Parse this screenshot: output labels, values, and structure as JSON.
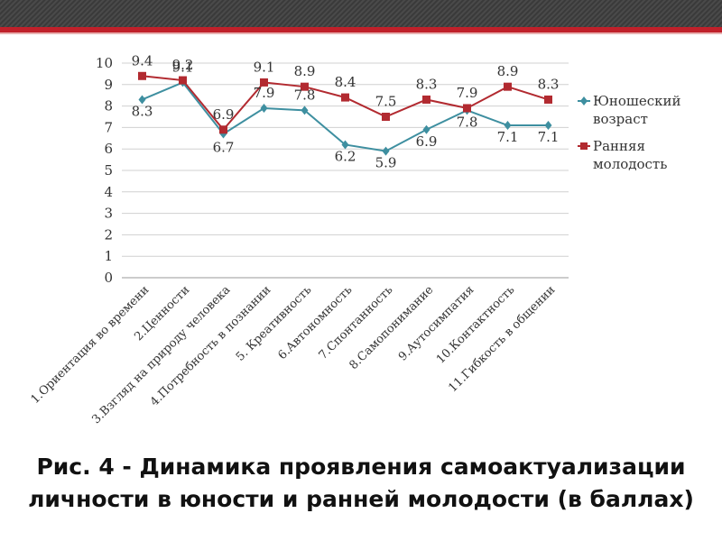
{
  "colors": {
    "top_bar": "#3a3a3a",
    "accent_red": "#c0202a",
    "series1": "#3e8fa0",
    "series2": "#b22a30",
    "grid": "#d0d0d0"
  },
  "chart_data": {
    "type": "line",
    "categories": [
      "1.Ориентация во времени",
      "2.Ценности",
      "3.Взгляд на природу человека",
      "4.Потребность в познании",
      "5. Креативность",
      "6.Автономность",
      "7.Спонтанность",
      "8.Самопонимание",
      "9.Аутосимпатия",
      "10.Контактность",
      "11.Гибкость в общении"
    ],
    "series": [
      {
        "name": "Юношеский возраст",
        "values": [
          8.3,
          9.1,
          6.7,
          7.9,
          7.8,
          6.2,
          5.9,
          6.9,
          7.8,
          7.1,
          7.1
        ],
        "marker": "diamond",
        "color": "#3e8fa0"
      },
      {
        "name": "Ранняя молодость",
        "values": [
          9.4,
          9.2,
          6.9,
          9.1,
          8.9,
          8.4,
          7.5,
          8.3,
          7.9,
          8.9,
          8.3
        ],
        "marker": "square",
        "color": "#b22a30"
      }
    ],
    "yticks": [
      "0",
      "1",
      "2",
      "3",
      "4",
      "5",
      "6",
      "7",
      "8",
      "9",
      "10"
    ],
    "ylim": [
      0,
      10
    ],
    "grid": true,
    "legend_position": "right"
  },
  "caption": {
    "line1": "Рис. 4 - Динамика проявления самоактуализации",
    "line2": "личности в юности и ранней молодости (в баллах)"
  }
}
